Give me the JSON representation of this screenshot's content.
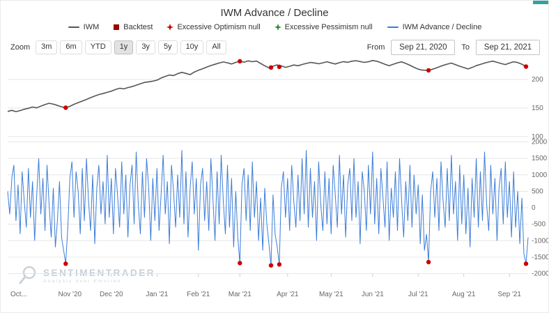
{
  "title": "IWM Advance / Decline",
  "legend": {
    "items": [
      {
        "label": "IWM",
        "type": "line",
        "color": "#555555"
      },
      {
        "label": "Backtest",
        "type": "square",
        "color": "#990000"
      },
      {
        "label": "Excessive Optimism null",
        "type": "star",
        "color": "#cc0000"
      },
      {
        "label": "Excessive Pessimism null",
        "type": "star",
        "color": "#2d8a2d"
      },
      {
        "label": "IWM Advance / Decline",
        "type": "line",
        "color": "#3b7dd8"
      }
    ]
  },
  "toolbar": {
    "zoom_label": "Zoom",
    "buttons": [
      "3m",
      "6m",
      "YTD",
      "1y",
      "3y",
      "5y",
      "10y",
      "All"
    ],
    "selected": "1y",
    "from_label": "From",
    "to_label": "To"
  },
  "range": {
    "from": "Sep 21, 2020",
    "to": "Sep 21, 2021"
  },
  "watermark": {
    "name": "SENTIMENTRADER",
    "tagline": "Analysis over Emotion"
  },
  "chart_data": {
    "type": "line",
    "title": "IWM Advance / Decline",
    "x_range_days": 251,
    "x_ticks": [
      {
        "day": 8,
        "label": "Oct..."
      },
      {
        "day": 30,
        "label": "Nov '20"
      },
      {
        "day": 50,
        "label": "Dec '20"
      },
      {
        "day": 72,
        "label": "Jan '21"
      },
      {
        "day": 92,
        "label": "Feb '21"
      },
      {
        "day": 112,
        "label": "Mar '21"
      },
      {
        "day": 135,
        "label": "Apr '21"
      },
      {
        "day": 156,
        "label": "May '21"
      },
      {
        "day": 176,
        "label": "Jun '21"
      },
      {
        "day": 198,
        "label": "Jul '21"
      },
      {
        "day": 220,
        "label": "Aug '21"
      },
      {
        "day": 242,
        "label": "Sep '21"
      }
    ],
    "panels": [
      {
        "name": "price",
        "series": "IWM",
        "color": "#555555",
        "y_ticks": [
          200,
          150,
          100
        ],
        "y_range": [
          95,
          240
        ],
        "points": [
          [
            0,
            144.2
          ],
          [
            2,
            146.0
          ],
          [
            4,
            143.8
          ],
          [
            6,
            145.6
          ],
          [
            8,
            147.9
          ],
          [
            10,
            149.6
          ],
          [
            12,
            151.8
          ],
          [
            14,
            150.4
          ],
          [
            16,
            153.4
          ],
          [
            18,
            156.1
          ],
          [
            20,
            158.4
          ],
          [
            22,
            156.8
          ],
          [
            24,
            154.6
          ],
          [
            26,
            152.2
          ],
          [
            28,
            150.6
          ],
          [
            30,
            153.1
          ],
          [
            32,
            156.6
          ],
          [
            34,
            159.4
          ],
          [
            36,
            162.2
          ],
          [
            38,
            165.1
          ],
          [
            40,
            168.2
          ],
          [
            42,
            171.1
          ],
          [
            44,
            173.6
          ],
          [
            46,
            175.4
          ],
          [
            48,
            177.6
          ],
          [
            50,
            179.5
          ],
          [
            52,
            182.4
          ],
          [
            54,
            184.6
          ],
          [
            56,
            183.5
          ],
          [
            58,
            185.8
          ],
          [
            60,
            187.6
          ],
          [
            62,
            189.9
          ],
          [
            64,
            192.6
          ],
          [
            66,
            194.9
          ],
          [
            68,
            195.8
          ],
          [
            70,
            197.1
          ],
          [
            72,
            198.8
          ],
          [
            74,
            202.6
          ],
          [
            76,
            205.4
          ],
          [
            78,
            207.8
          ],
          [
            80,
            206.8
          ],
          [
            82,
            210.1
          ],
          [
            84,
            212.4
          ],
          [
            86,
            210.6
          ],
          [
            88,
            208.4
          ],
          [
            90,
            212.9
          ],
          [
            92,
            216.1
          ],
          [
            94,
            218.8
          ],
          [
            96,
            221.6
          ],
          [
            98,
            224.4
          ],
          [
            100,
            226.6
          ],
          [
            102,
            228.8
          ],
          [
            104,
            230.6
          ],
          [
            106,
            229.2
          ],
          [
            108,
            227.1
          ],
          [
            110,
            229.9
          ],
          [
            112,
            231.8
          ],
          [
            114,
            230.2
          ],
          [
            116,
            232.6
          ],
          [
            118,
            231.1
          ],
          [
            120,
            232.2
          ],
          [
            122,
            228.1
          ],
          [
            124,
            223.9
          ],
          [
            126,
            220.4
          ],
          [
            127,
            221.0
          ],
          [
            128,
            223.2
          ],
          [
            130,
            225.6
          ],
          [
            131,
            222.2
          ],
          [
            132,
            223.8
          ],
          [
            134,
            221.2
          ],
          [
            136,
            223.1
          ],
          [
            138,
            225.4
          ],
          [
            140,
            224.0
          ],
          [
            142,
            226.2
          ],
          [
            144,
            228.1
          ],
          [
            146,
            229.8
          ],
          [
            148,
            228.9
          ],
          [
            150,
            227.4
          ],
          [
            152,
            229.2
          ],
          [
            154,
            231.0
          ],
          [
            156,
            228.9
          ],
          [
            158,
            227.1
          ],
          [
            160,
            229.4
          ],
          [
            162,
            231.2
          ],
          [
            164,
            230.0
          ],
          [
            166,
            231.9
          ],
          [
            168,
            232.8
          ],
          [
            170,
            231.4
          ],
          [
            172,
            229.9
          ],
          [
            174,
            231.0
          ],
          [
            176,
            233.2
          ],
          [
            178,
            232.0
          ],
          [
            180,
            229.4
          ],
          [
            182,
            226.6
          ],
          [
            184,
            224.1
          ],
          [
            186,
            226.7
          ],
          [
            188,
            229.2
          ],
          [
            190,
            230.8
          ],
          [
            192,
            228.0
          ],
          [
            194,
            224.9
          ],
          [
            196,
            221.2
          ],
          [
            198,
            218.0
          ],
          [
            200,
            216.4
          ],
          [
            203,
            216.0
          ],
          [
            206,
            219.1
          ],
          [
            208,
            221.9
          ],
          [
            210,
            224.6
          ],
          [
            212,
            226.8
          ],
          [
            214,
            228.7
          ],
          [
            216,
            226.0
          ],
          [
            218,
            223.2
          ],
          [
            220,
            220.9
          ],
          [
            222,
            218.4
          ],
          [
            224,
            221.0
          ],
          [
            226,
            224.1
          ],
          [
            228,
            226.4
          ],
          [
            230,
            228.7
          ],
          [
            232,
            230.6
          ],
          [
            234,
            232.1
          ],
          [
            236,
            230.0
          ],
          [
            238,
            227.9
          ],
          [
            240,
            226.1
          ],
          [
            242,
            228.7
          ],
          [
            244,
            231.0
          ],
          [
            246,
            229.6
          ],
          [
            248,
            226.7
          ],
          [
            250,
            222.6
          ],
          [
            251,
            222.0
          ]
        ],
        "markers": {
          "name": "Backtest",
          "color": "#cc0000",
          "points": [
            [
              28,
              150.6
            ],
            [
              112,
              231.8
            ],
            [
              127,
              221.0
            ],
            [
              131,
              222.2
            ],
            [
              203,
              216.0
            ],
            [
              250,
              222.6
            ]
          ]
        }
      },
      {
        "name": "advance_decline",
        "series": "IWM Advance / Decline",
        "color": "#3b7dd8",
        "y_ticks": [
          2000,
          1500,
          1000,
          500,
          0,
          -500,
          -1000,
          -1500,
          -2000
        ],
        "y_range": [
          -2100,
          2100
        ],
        "values": [
          500,
          -200,
          900,
          1300,
          -400,
          700,
          -800,
          1100,
          200,
          -600,
          1200,
          -300,
          800,
          -1000,
          400,
          1500,
          -200,
          900,
          -700,
          1300,
          100,
          -900,
          600,
          -1200,
          -400,
          800,
          -900,
          -1300,
          -1700,
          -600,
          900,
          1400,
          -300,
          1100,
          500,
          -800,
          1200,
          -400,
          1500,
          200,
          -700,
          1000,
          -1100,
          600,
          1300,
          -200,
          800,
          -500,
          1600,
          -300,
          900,
          -800,
          1200,
          400,
          -600,
          1400,
          -200,
          1000,
          -900,
          700,
          1300,
          -500,
          1700,
          100,
          -800,
          1100,
          -300,
          1500,
          600,
          -1000,
          900,
          -400,
          1200,
          -700,
          400,
          1600,
          -200,
          800,
          -1100,
          1300,
          500,
          -600,
          1000,
          -300,
          1750,
          -500,
          1100,
          -900,
          600,
          1400,
          -200,
          900,
          -1300,
          700,
          1200,
          -400,
          800,
          -700,
          1500,
          300,
          -1000,
          1100,
          -500,
          1600,
          200,
          -800,
          1300,
          -600,
          900,
          -1200,
          500,
          -900,
          -1680,
          700,
          1200,
          -400,
          1000,
          -700,
          1400,
          -300,
          800,
          -1000,
          300,
          -1300,
          600,
          -500,
          -1100,
          -1750,
          400,
          -800,
          -1200,
          -1720,
          600,
          1100,
          -300,
          900,
          -700,
          1300,
          200,
          -600,
          1000,
          -400,
          1500,
          -200,
          1750,
          -600,
          1200,
          -300,
          800,
          -1000,
          1400,
          100,
          -700,
          1100,
          -500,
          900,
          -800,
          1300,
          400,
          -600,
          1600,
          -200,
          1000,
          -900,
          700,
          1200,
          -400,
          1500,
          -300,
          800,
          -1100,
          1100,
          500,
          -700,
          1300,
          -200,
          1700,
          -500,
          900,
          -800,
          1200,
          300,
          -600,
          1400,
          -1000,
          600,
          -300,
          1100,
          -700,
          1500,
          200,
          -900,
          800,
          -400,
          1300,
          -600,
          1000,
          -200,
          700,
          -1100,
          400,
          -1300,
          -800,
          -1650,
          500,
          1100,
          -300,
          900,
          -700,
          1400,
          200,
          -600,
          1200,
          -400,
          1600,
          -200,
          800,
          -1000,
          1300,
          -500,
          1000,
          -800,
          600,
          -1200,
          900,
          -300,
          1500,
          -600,
          1100,
          -400,
          1700,
          100,
          -700,
          1300,
          -200,
          900,
          -1000,
          600,
          1200,
          -500,
          1400,
          -300,
          800,
          -900,
          1100,
          -600,
          500,
          -1100,
          300,
          -1400,
          -1700,
          -900
        ],
        "markers": {
          "name": "Backtest",
          "color": "#cc0000",
          "points": [
            [
              28,
              -1700
            ],
            [
              112,
              -1680
            ],
            [
              127,
              -1750
            ],
            [
              131,
              -1720
            ],
            [
              203,
              -1650
            ],
            [
              250,
              -1700
            ]
          ]
        }
      }
    ]
  }
}
